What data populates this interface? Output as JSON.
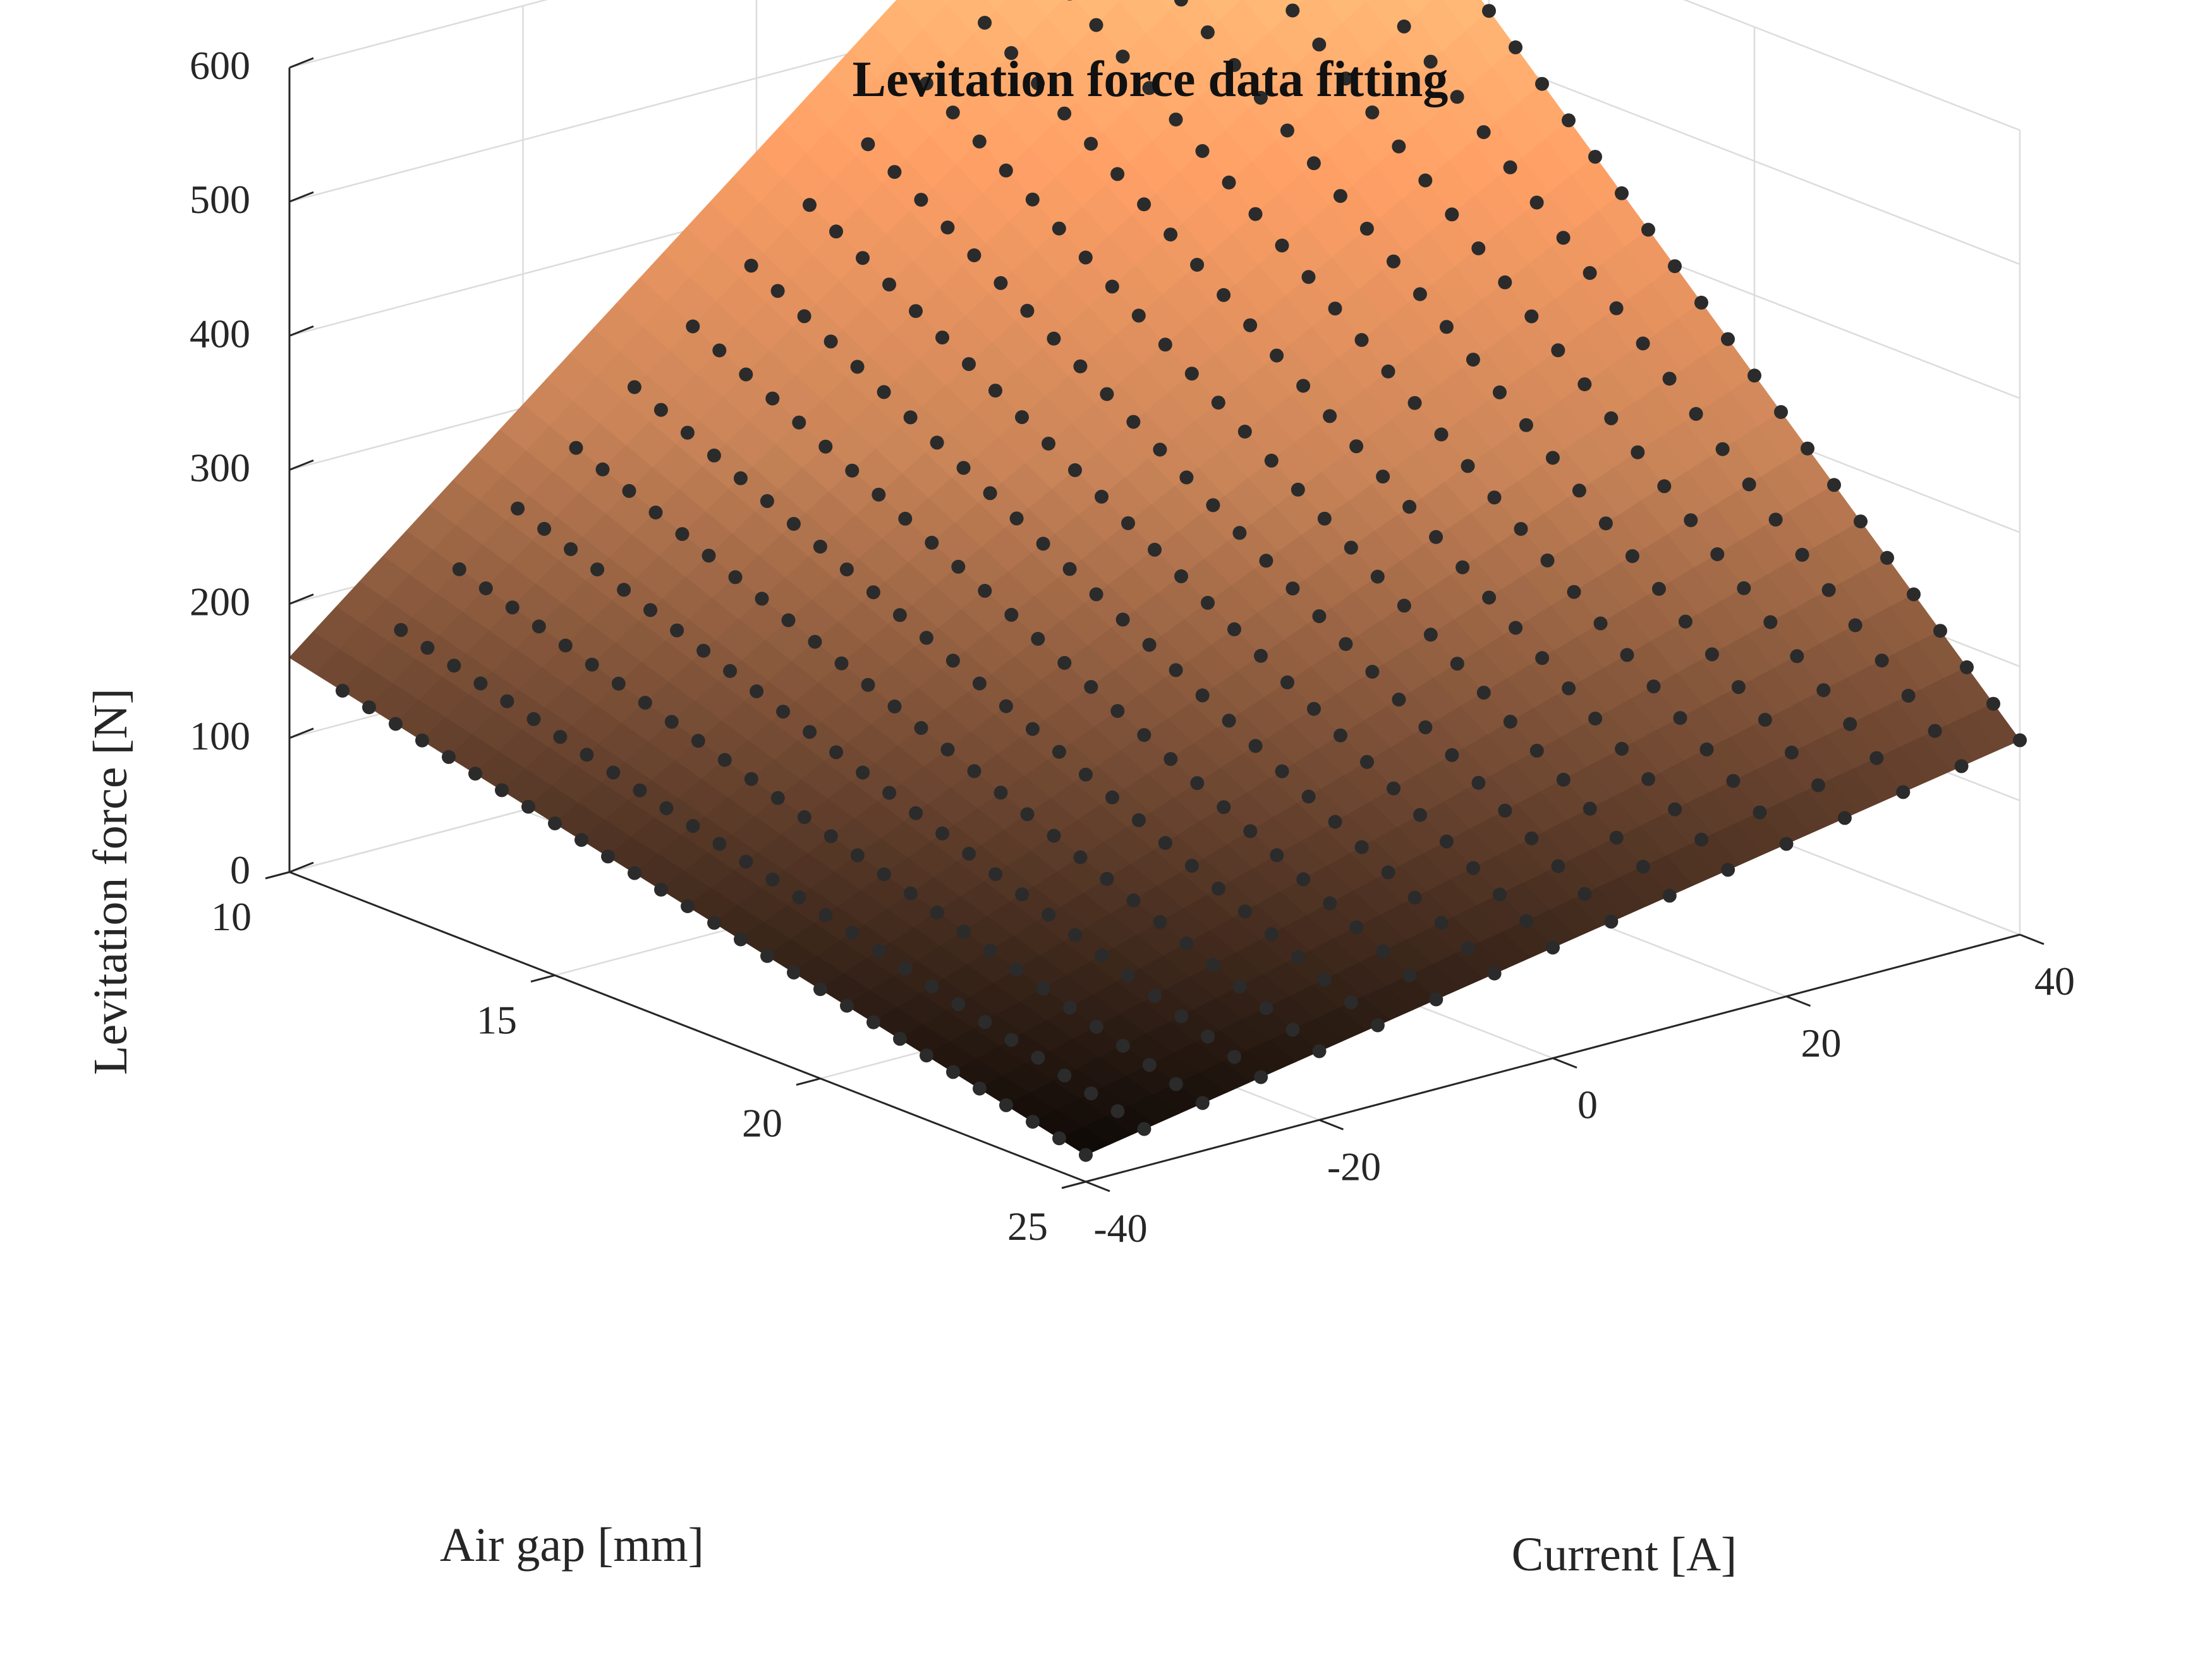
{
  "chart_data": {
    "type": "surface3d",
    "title": "Levitation force data fitting",
    "xlabel": "Current [A]",
    "ylabel": "Air gap [mm]",
    "zlabel": "Levitation force [N]",
    "xlim": [
      -40,
      40
    ],
    "ylim": [
      10,
      25
    ],
    "zlim": [
      0,
      600
    ],
    "x_ticks": [
      -40,
      -20,
      0,
      20,
      40
    ],
    "x_tick_labels": [
      "-40",
      "-20",
      "0",
      "20",
      "40"
    ],
    "y_ticks": [
      10,
      15,
      20,
      25
    ],
    "y_tick_labels": [
      "10",
      "15",
      "20",
      "25"
    ],
    "z_ticks": [
      0,
      100,
      200,
      300,
      400,
      500,
      600
    ],
    "z_tick_labels": [
      "0",
      "100",
      "200",
      "300",
      "400",
      "500",
      "600"
    ],
    "grid": true,
    "colormap": "copper",
    "colormap_stops": [
      "#000000",
      "#6b4530",
      "#c98458",
      "#ffa066",
      "#ffc880"
    ],
    "marker_color": "#2b2b2b",
    "surface_corners": [
      {
        "x": -40,
        "y": 10,
        "z": 160
      },
      {
        "x": 40,
        "y": 10,
        "z": 730
      },
      {
        "x": -40,
        "y": 25,
        "z": 20
      },
      {
        "x": 40,
        "y": 25,
        "z": 145
      }
    ],
    "measured_points": {
      "x_range": [
        -40,
        40
      ],
      "x_step": 5,
      "y_range": [
        11,
        25
      ],
      "y_step": 0.5
    }
  }
}
